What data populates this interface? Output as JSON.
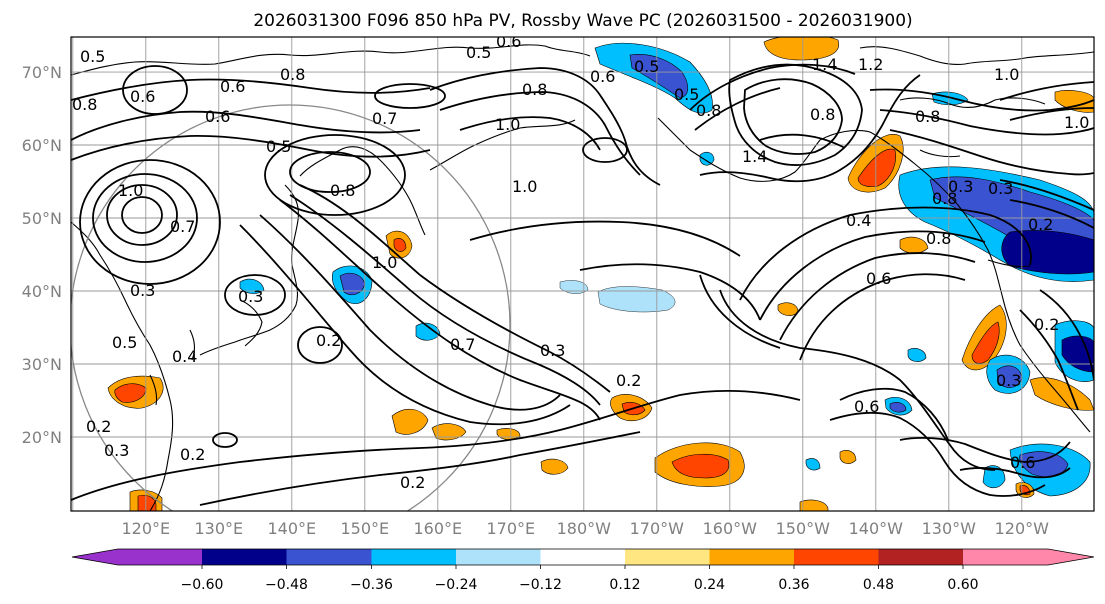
{
  "title": "2026031300 F096 850 hPa PV, Rossby Wave PC (2026031500 - 2026031900)",
  "lat_labels": [
    "70°N",
    "60°N",
    "50°N",
    "40°N",
    "30°N",
    "20°N"
  ],
  "lon_labels": [
    "120°E",
    "130°E",
    "140°E",
    "150°E",
    "160°E",
    "170°E",
    "180°W",
    "170°W",
    "160°W",
    "150°W",
    "140°W",
    "130°W",
    "120°W"
  ],
  "colorbar": {
    "ticks": [
      "−0.60",
      "−0.48",
      "−0.36",
      "−0.24",
      "−0.12",
      "0.12",
      "0.24",
      "0.36",
      "0.48",
      "0.60"
    ],
    "colors": [
      "#9932cc",
      "#00008b",
      "#3a53d1",
      "#00bfff",
      "#aee2fb",
      "#ffffff",
      "#ffe680",
      "#ffa500",
      "#ff4500",
      "#b22222",
      "#ff88aa"
    ]
  },
  "contour_labels": [
    "0.5",
    "0.6",
    "0.8",
    "0.6",
    "0.8",
    "0.6",
    "0.7",
    "0.5",
    "1.0",
    "0.8",
    "1.0",
    "0.5",
    "0.6",
    "0.5",
    "0.8",
    "0.7",
    "1.0",
    "0.6",
    "1.0",
    "0.8",
    "0.3",
    "0.2",
    "0.5",
    "0.4",
    "0.3",
    "0.2",
    "0.7",
    "0.3",
    "0.2",
    "0.2",
    "0.3",
    "0.2",
    "0.8",
    "0.8",
    "0.6",
    "0.4",
    "0.8",
    "0.6",
    "0.6",
    "0.2",
    "0.3",
    "1.4",
    "1.2",
    "1.0",
    "1.0",
    "1.4",
    "0.8",
    "0.3",
    "0.5",
    "0.3",
    "0.2"
  ]
}
